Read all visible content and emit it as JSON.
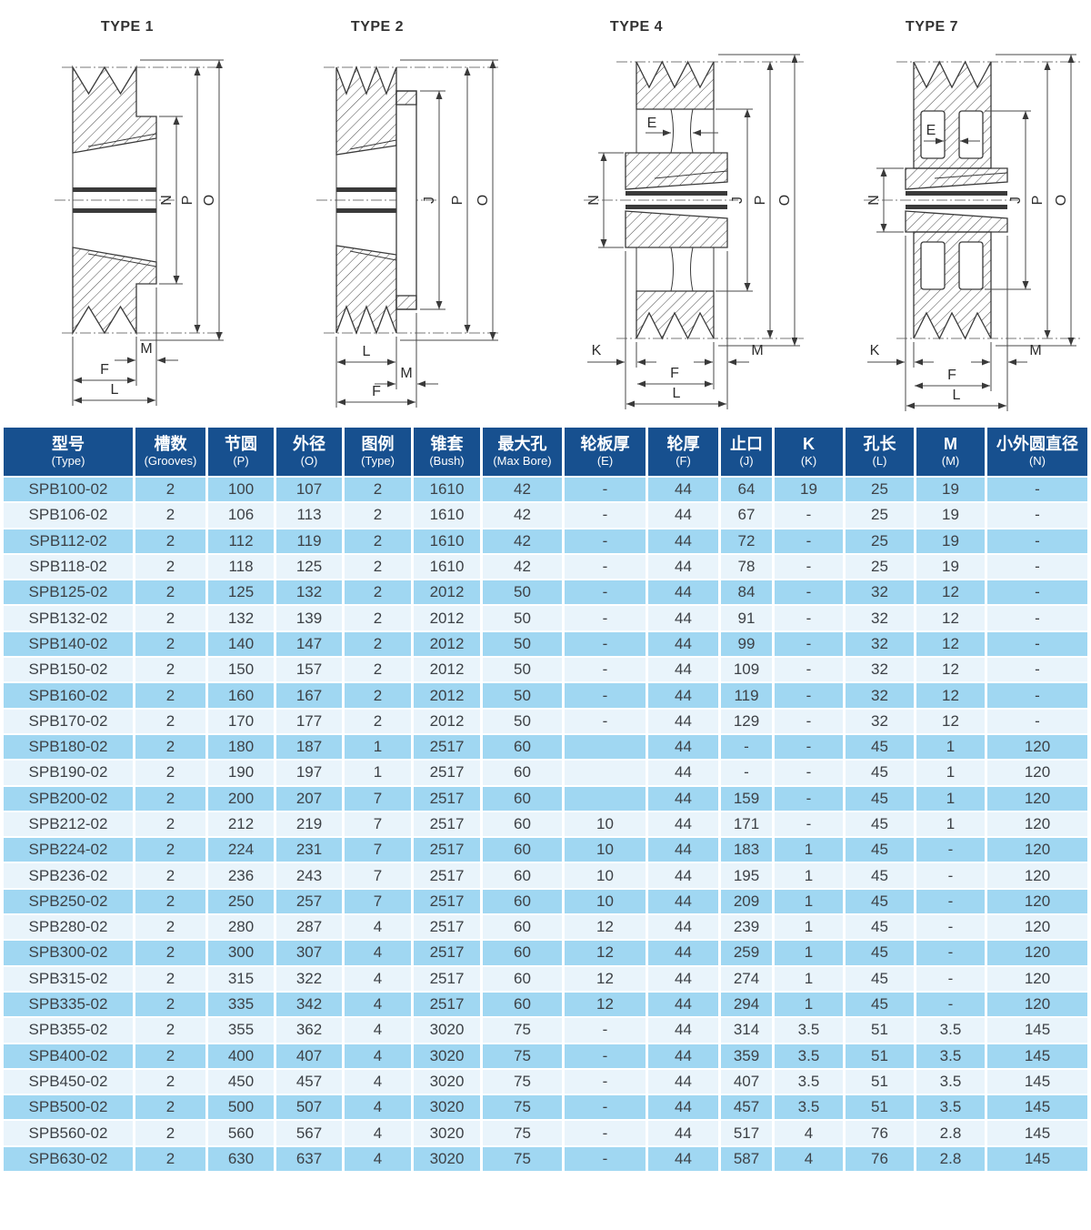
{
  "colors": {
    "header_bg": "#17508f",
    "row_odd": "#a0d7f2",
    "row_even": "#e9f4fb",
    "cell_text": "#3d4146"
  },
  "diagrams": [
    {
      "title": "TYPE 1",
      "dims": {
        "N": "N",
        "P": "P",
        "O": "O",
        "M": "M",
        "F": "F",
        "L": "L"
      }
    },
    {
      "title": "TYPE 2",
      "dims": {
        "J": "J",
        "P": "P",
        "O": "O",
        "L": "L",
        "M": "M",
        "F": "F"
      }
    },
    {
      "title": "TYPE 4",
      "dims": {
        "E": "E",
        "N": "N",
        "J": "J",
        "P": "P",
        "O": "O",
        "K": "K",
        "M": "M",
        "F": "F",
        "L": "L"
      }
    },
    {
      "title": "TYPE 7",
      "dims": {
        "E": "E",
        "N": "N",
        "J": "J",
        "P": "P",
        "O": "O",
        "K": "K",
        "M": "M",
        "F": "F",
        "L": "L"
      }
    }
  ],
  "table": {
    "columns": [
      {
        "cn": "型号",
        "en": "(Type)"
      },
      {
        "cn": "槽数",
        "en": "(Grooves)"
      },
      {
        "cn": "节圆",
        "en": "(P)"
      },
      {
        "cn": "外径",
        "en": "(O)"
      },
      {
        "cn": "图例",
        "en": "(Type)"
      },
      {
        "cn": "锥套",
        "en": "(Bush)"
      },
      {
        "cn": "最大孔",
        "en": "(Max Bore)"
      },
      {
        "cn": "轮板厚",
        "en": "(E)"
      },
      {
        "cn": "轮厚",
        "en": "(F)"
      },
      {
        "cn": "止口",
        "en": "(J)"
      },
      {
        "cn": "K",
        "en": "(K)"
      },
      {
        "cn": "孔长",
        "en": "(L)"
      },
      {
        "cn": "M",
        "en": "(M)"
      },
      {
        "cn": "小外圆直径",
        "en": "(N)"
      }
    ],
    "rows": [
      [
        "SPB100-02",
        "2",
        "100",
        "107",
        "2",
        "1610",
        "42",
        "-",
        "44",
        "64",
        "19",
        "25",
        "19",
        "-"
      ],
      [
        "SPB106-02",
        "2",
        "106",
        "113",
        "2",
        "1610",
        "42",
        "-",
        "44",
        "67",
        "-",
        "25",
        "19",
        "-"
      ],
      [
        "SPB112-02",
        "2",
        "112",
        "119",
        "2",
        "1610",
        "42",
        "-",
        "44",
        "72",
        "-",
        "25",
        "19",
        "-"
      ],
      [
        "SPB118-02",
        "2",
        "118",
        "125",
        "2",
        "1610",
        "42",
        "-",
        "44",
        "78",
        "-",
        "25",
        "19",
        "-"
      ],
      [
        "SPB125-02",
        "2",
        "125",
        "132",
        "2",
        "2012",
        "50",
        "-",
        "44",
        "84",
        "-",
        "32",
        "12",
        "-"
      ],
      [
        "SPB132-02",
        "2",
        "132",
        "139",
        "2",
        "2012",
        "50",
        "-",
        "44",
        "91",
        "-",
        "32",
        "12",
        "-"
      ],
      [
        "SPB140-02",
        "2",
        "140",
        "147",
        "2",
        "2012",
        "50",
        "-",
        "44",
        "99",
        "-",
        "32",
        "12",
        "-"
      ],
      [
        "SPB150-02",
        "2",
        "150",
        "157",
        "2",
        "2012",
        "50",
        "-",
        "44",
        "109",
        "-",
        "32",
        "12",
        "-"
      ],
      [
        "SPB160-02",
        "2",
        "160",
        "167",
        "2",
        "2012",
        "50",
        "-",
        "44",
        "119",
        "-",
        "32",
        "12",
        "-"
      ],
      [
        "SPB170-02",
        "2",
        "170",
        "177",
        "2",
        "2012",
        "50",
        "-",
        "44",
        "129",
        "-",
        "32",
        "12",
        "-"
      ],
      [
        "SPB180-02",
        "2",
        "180",
        "187",
        "1",
        "2517",
        "60",
        "",
        "44",
        "-",
        "-",
        "45",
        "1",
        "120"
      ],
      [
        "SPB190-02",
        "2",
        "190",
        "197",
        "1",
        "2517",
        "60",
        "",
        "44",
        "-",
        "-",
        "45",
        "1",
        "120"
      ],
      [
        "SPB200-02",
        "2",
        "200",
        "207",
        "7",
        "2517",
        "60",
        "",
        "44",
        "159",
        "-",
        "45",
        "1",
        "120"
      ],
      [
        "SPB212-02",
        "2",
        "212",
        "219",
        "7",
        "2517",
        "60",
        "10",
        "44",
        "171",
        "-",
        "45",
        "1",
        "120"
      ],
      [
        "SPB224-02",
        "2",
        "224",
        "231",
        "7",
        "2517",
        "60",
        "10",
        "44",
        "183",
        "1",
        "45",
        "-",
        "120"
      ],
      [
        "SPB236-02",
        "2",
        "236",
        "243",
        "7",
        "2517",
        "60",
        "10",
        "44",
        "195",
        "1",
        "45",
        "-",
        "120"
      ],
      [
        "SPB250-02",
        "2",
        "250",
        "257",
        "7",
        "2517",
        "60",
        "10",
        "44",
        "209",
        "1",
        "45",
        "-",
        "120"
      ],
      [
        "SPB280-02",
        "2",
        "280",
        "287",
        "4",
        "2517",
        "60",
        "12",
        "44",
        "239",
        "1",
        "45",
        "-",
        "120"
      ],
      [
        "SPB300-02",
        "2",
        "300",
        "307",
        "4",
        "2517",
        "60",
        "12",
        "44",
        "259",
        "1",
        "45",
        "-",
        "120"
      ],
      [
        "SPB315-02",
        "2",
        "315",
        "322",
        "4",
        "2517",
        "60",
        "12",
        "44",
        "274",
        "1",
        "45",
        "-",
        "120"
      ],
      [
        "SPB335-02",
        "2",
        "335",
        "342",
        "4",
        "2517",
        "60",
        "12",
        "44",
        "294",
        "1",
        "45",
        "-",
        "120"
      ],
      [
        "SPB355-02",
        "2",
        "355",
        "362",
        "4",
        "3020",
        "75",
        "-",
        "44",
        "314",
        "3.5",
        "51",
        "3.5",
        "145"
      ],
      [
        "SPB400-02",
        "2",
        "400",
        "407",
        "4",
        "3020",
        "75",
        "-",
        "44",
        "359",
        "3.5",
        "51",
        "3.5",
        "145"
      ],
      [
        "SPB450-02",
        "2",
        "450",
        "457",
        "4",
        "3020",
        "75",
        "-",
        "44",
        "407",
        "3.5",
        "51",
        "3.5",
        "145"
      ],
      [
        "SPB500-02",
        "2",
        "500",
        "507",
        "4",
        "3020",
        "75",
        "-",
        "44",
        "457",
        "3.5",
        "51",
        "3.5",
        "145"
      ],
      [
        "SPB560-02",
        "2",
        "560",
        "567",
        "4",
        "3020",
        "75",
        "-",
        "44",
        "517",
        "4",
        "76",
        "2.8",
        "145"
      ],
      [
        "SPB630-02",
        "2",
        "630",
        "637",
        "4",
        "3020",
        "75",
        "-",
        "44",
        "587",
        "4",
        "76",
        "2.8",
        "145"
      ]
    ]
  }
}
